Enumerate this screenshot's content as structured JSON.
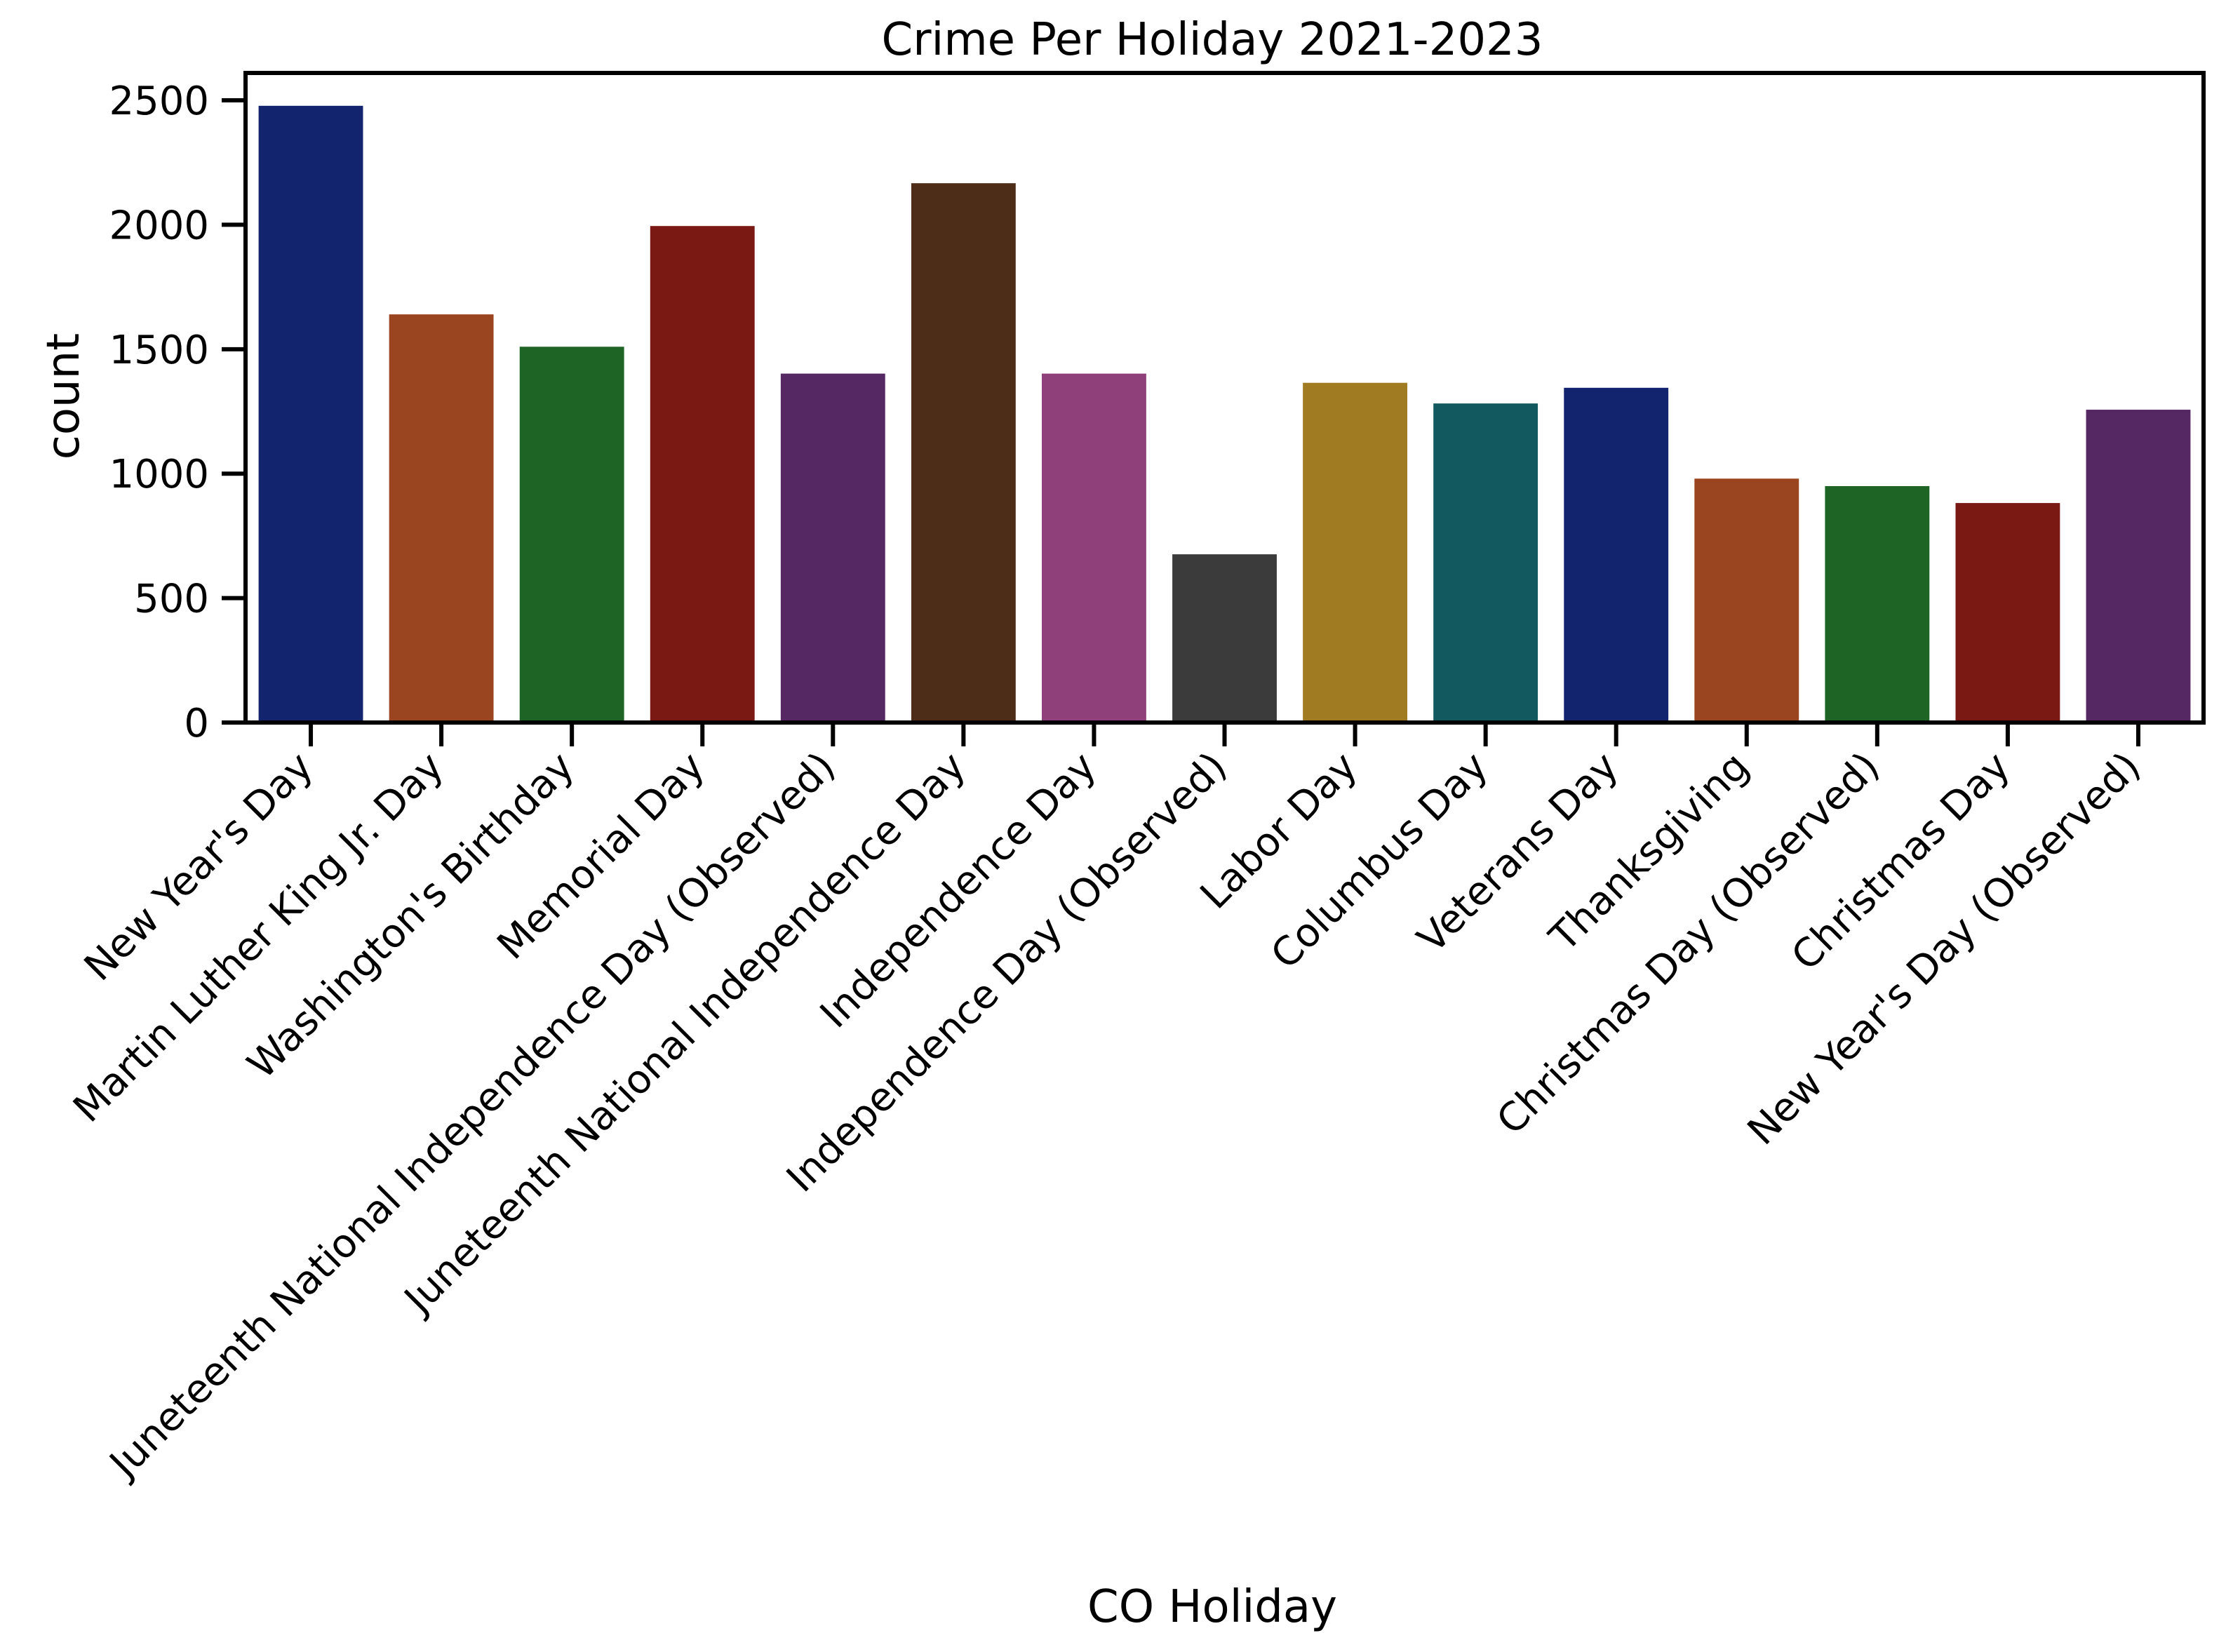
{
  "chart_data": {
    "type": "bar",
    "title": "Crime Per Holiday 2021-2023",
    "xlabel": "CO Holiday",
    "ylabel": "count",
    "ylim": [
      0,
      2610
    ],
    "yticks": [
      0,
      500,
      1000,
      1500,
      2000,
      2500
    ],
    "grid": false,
    "legend": "none",
    "categories": [
      "New Year's Day",
      "Martin Luther King Jr. Day",
      "Washington's Birthday",
      "Memorial Day",
      "Juneteenth National Independence Day (Observed)",
      "Juneteenth National Independence Day",
      "Independence Day",
      "Independence Day (Observed)",
      "Labor Day",
      "Columbus Day",
      "Veterans Day",
      "Thanksgiving",
      "Christmas Day (Observed)",
      "Christmas Day",
      "New Year's Day (Observed)"
    ],
    "values": [
      2478,
      1640,
      1510,
      1995,
      1402,
      2167,
      1402,
      676,
      1365,
      1282,
      1345,
      980,
      950,
      882,
      1257
    ],
    "colors": [
      "#12246d",
      "#9b4520",
      "#1e6425",
      "#7a1914",
      "#552864",
      "#4d2d18",
      "#8f3f79",
      "#3b3b3b",
      "#a17b22",
      "#11595f",
      "#12246d",
      "#9b4520",
      "#1e6425",
      "#7a1914",
      "#552864"
    ]
  }
}
